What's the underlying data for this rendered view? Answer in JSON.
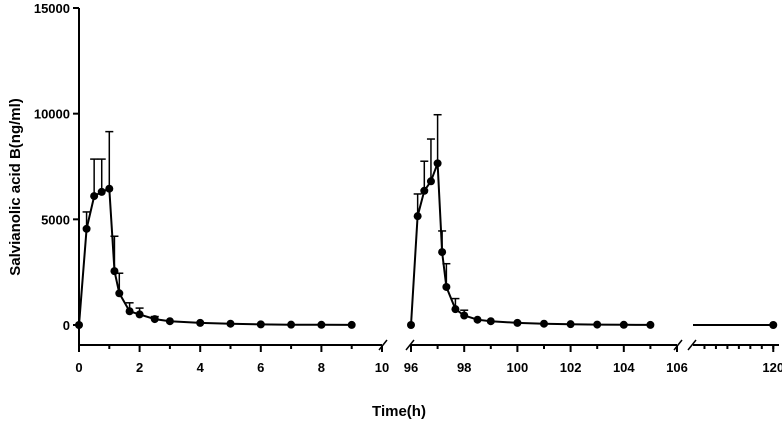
{
  "chart_data": {
    "type": "line",
    "title": "",
    "xlabel": "Time(h)",
    "ylabel": "Salvianolic acid B(ng/ml)",
    "ylim": [
      0,
      15000
    ],
    "yticks": [
      "0",
      "5000",
      "10000",
      "15000"
    ],
    "grid": false,
    "legend": "none",
    "color": "#000000",
    "x_segments": [
      {
        "range": [
          0,
          10
        ],
        "ticks": [
          "0",
          "2",
          "4",
          "6",
          "8",
          "10"
        ]
      },
      {
        "range": [
          96,
          106
        ],
        "ticks": [
          "96",
          "98",
          "100",
          "102",
          "104",
          "106"
        ]
      },
      {
        "range": [
          106,
          121
        ],
        "ticks": [
          "120"
        ]
      }
    ],
    "series": [
      {
        "points": [
          {
            "x": 0,
            "y": 0,
            "err": 0
          },
          {
            "x": 0.25,
            "y": 4550,
            "err": 800
          },
          {
            "x": 0.5,
            "y": 6100,
            "err": 1750
          },
          {
            "x": 0.75,
            "y": 6300,
            "err": 1550
          },
          {
            "x": 1,
            "y": 6450,
            "err": 2700
          },
          {
            "x": 1.17,
            "y": 2550,
            "err": 1650
          },
          {
            "x": 1.33,
            "y": 1500,
            "err": 950
          },
          {
            "x": 1.67,
            "y": 650,
            "err": 400
          },
          {
            "x": 2,
            "y": 500,
            "err": 300
          },
          {
            "x": 2.5,
            "y": 280,
            "err": 120
          },
          {
            "x": 3,
            "y": 180,
            "err": 0
          },
          {
            "x": 4,
            "y": 100,
            "err": 0
          },
          {
            "x": 5,
            "y": 60,
            "err": 0
          },
          {
            "x": 6,
            "y": 30,
            "err": 0
          },
          {
            "x": 7,
            "y": 15,
            "err": 0
          },
          {
            "x": 8,
            "y": 10,
            "err": 0
          },
          {
            "x": 9,
            "y": 5,
            "err": 0
          }
        ],
        "segment": 0
      },
      {
        "points": [
          {
            "x": 96,
            "y": 0,
            "err": 0
          },
          {
            "x": 96.25,
            "y": 5150,
            "err": 1050
          },
          {
            "x": 96.5,
            "y": 6350,
            "err": 1400
          },
          {
            "x": 96.75,
            "y": 6800,
            "err": 2000
          },
          {
            "x": 97,
            "y": 7650,
            "err": 2300
          },
          {
            "x": 97.17,
            "y": 3450,
            "err": 1000
          },
          {
            "x": 97.33,
            "y": 1800,
            "err": 1100
          },
          {
            "x": 97.67,
            "y": 750,
            "err": 500
          },
          {
            "x": 98,
            "y": 450,
            "err": 250
          },
          {
            "x": 98.5,
            "y": 250,
            "err": 0
          },
          {
            "x": 99,
            "y": 180,
            "err": 0
          },
          {
            "x": 100,
            "y": 100,
            "err": 0
          },
          {
            "x": 101,
            "y": 60,
            "err": 0
          },
          {
            "x": 102,
            "y": 40,
            "err": 0
          },
          {
            "x": 103,
            "y": 20,
            "err": 0
          },
          {
            "x": 104,
            "y": 10,
            "err": 0
          },
          {
            "x": 105,
            "y": 5,
            "err": 0
          }
        ],
        "segment": 1
      },
      {
        "points": [
          {
            "x": 120,
            "y": 0,
            "err": 0
          }
        ],
        "segment": 2,
        "line_from_segment_start": true
      }
    ]
  }
}
